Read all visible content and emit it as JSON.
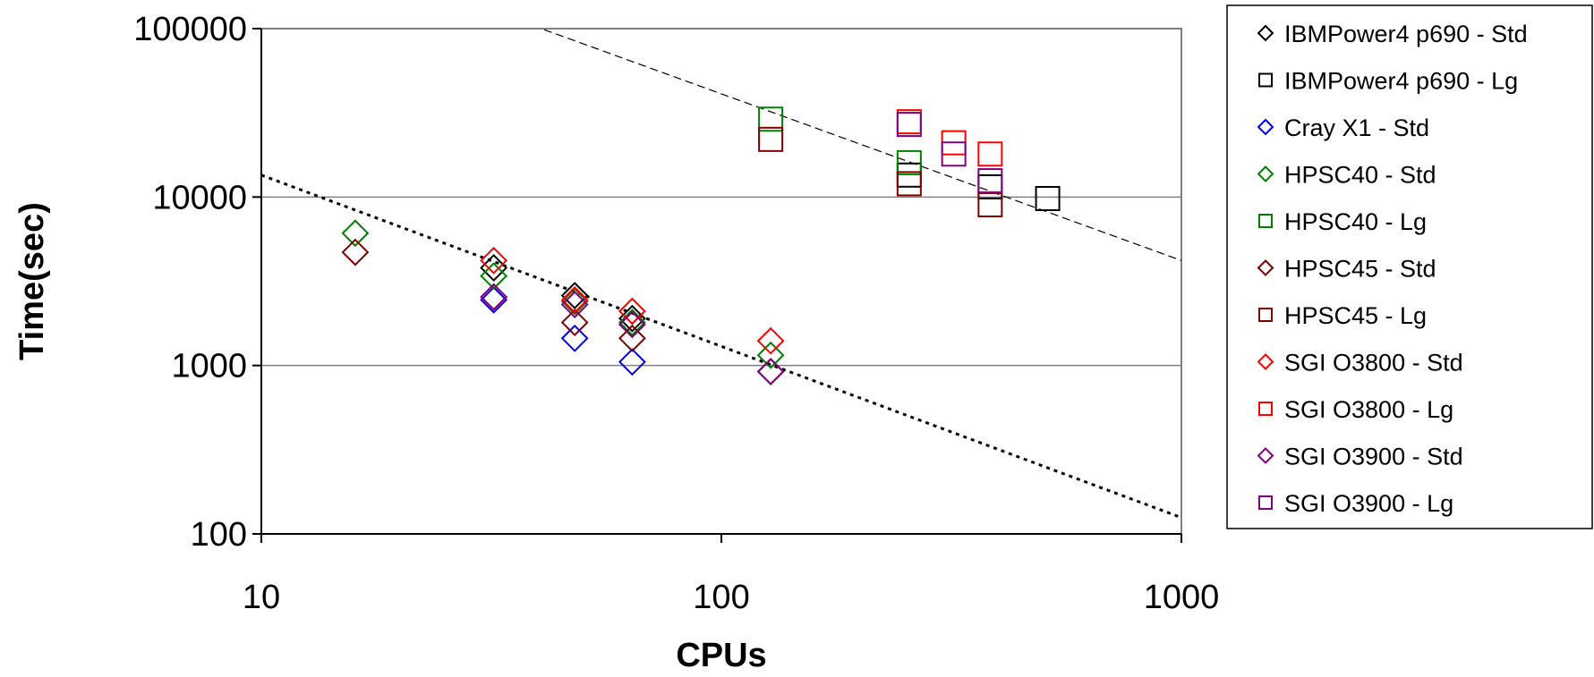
{
  "chart_data": {
    "type": "scatter",
    "xlabel": "CPUs",
    "ylabel": "Time(sec)",
    "xscale": "log",
    "yscale": "log",
    "xlim": [
      10,
      1000
    ],
    "ylim": [
      100,
      100000
    ],
    "x_ticks": [
      "10",
      "100",
      "1000"
    ],
    "y_ticks": [
      "100",
      "1000",
      "10000",
      "100000"
    ],
    "grid": "horizontal major lines",
    "legend_position": "right",
    "series": [
      {
        "name": "IBMPower4 p690 - Std",
        "marker": "diamond",
        "color": "#000000",
        "points": [
          [
            32,
            3800
          ],
          [
            48,
            2600
          ],
          [
            64,
            1900
          ]
        ]
      },
      {
        "name": "IBMPower4 p690 - Lg",
        "marker": "square",
        "color": "#000000",
        "points": [
          [
            256,
            13500
          ],
          [
            384,
            11500
          ],
          [
            512,
            9800
          ]
        ]
      },
      {
        "name": "Cray X1 - Std",
        "marker": "diamond",
        "color": "#0000ff",
        "points": [
          [
            32,
            2450
          ],
          [
            48,
            1450
          ],
          [
            64,
            1050
          ]
        ]
      },
      {
        "name": "HPSC40 - Std",
        "marker": "diamond",
        "color": "#008000",
        "points": [
          [
            16,
            6100
          ],
          [
            32,
            3400
          ],
          [
            48,
            2400
          ],
          [
            64,
            1800
          ],
          [
            128,
            1150
          ]
        ]
      },
      {
        "name": "HPSC40 - Lg",
        "marker": "square",
        "color": "#008000",
        "points": [
          [
            128,
            29000
          ],
          [
            256,
            16000
          ]
        ]
      },
      {
        "name": "HPSC45 - Std",
        "marker": "diamond",
        "color": "#800000",
        "points": [
          [
            16,
            4700
          ],
          [
            32,
            2550
          ],
          [
            48,
            1800
          ],
          [
            64,
            1450
          ],
          [
            128,
            920
          ]
        ]
      },
      {
        "name": "HPSC45 - Lg",
        "marker": "square",
        "color": "#800000",
        "points": [
          [
            128,
            22000
          ],
          [
            256,
            12000
          ],
          [
            384,
            9000
          ]
        ]
      },
      {
        "name": "SGI O3800 - Std",
        "marker": "diamond",
        "color": "#ff0000",
        "points": [
          [
            32,
            4200
          ],
          [
            48,
            2450
          ],
          [
            64,
            2100
          ],
          [
            128,
            1400
          ]
        ]
      },
      {
        "name": "SGI O3800 - Lg",
        "marker": "square",
        "color": "#ff0000",
        "points": [
          [
            256,
            28000
          ],
          [
            320,
            21000
          ],
          [
            384,
            18000
          ]
        ]
      },
      {
        "name": "SGI O3900 - Std",
        "marker": "diamond",
        "color": "#800080",
        "points": [
          [
            32,
            2550
          ],
          [
            48,
            2300
          ],
          [
            64,
            1750
          ],
          [
            128,
            920
          ]
        ]
      },
      {
        "name": "SGI O3900 - Lg",
        "marker": "square",
        "color": "#800080",
        "points": [
          [
            256,
            27000
          ],
          [
            320,
            18000
          ],
          [
            384,
            12500
          ]
        ]
      }
    ],
    "reference_lines": [
      {
        "style": "dotted",
        "from": [
          10,
          13500
        ],
        "to": [
          1000,
          125
        ]
      },
      {
        "style": "dashed",
        "from": [
          10,
          400000
        ],
        "to": [
          1000,
          4200
        ]
      }
    ]
  }
}
